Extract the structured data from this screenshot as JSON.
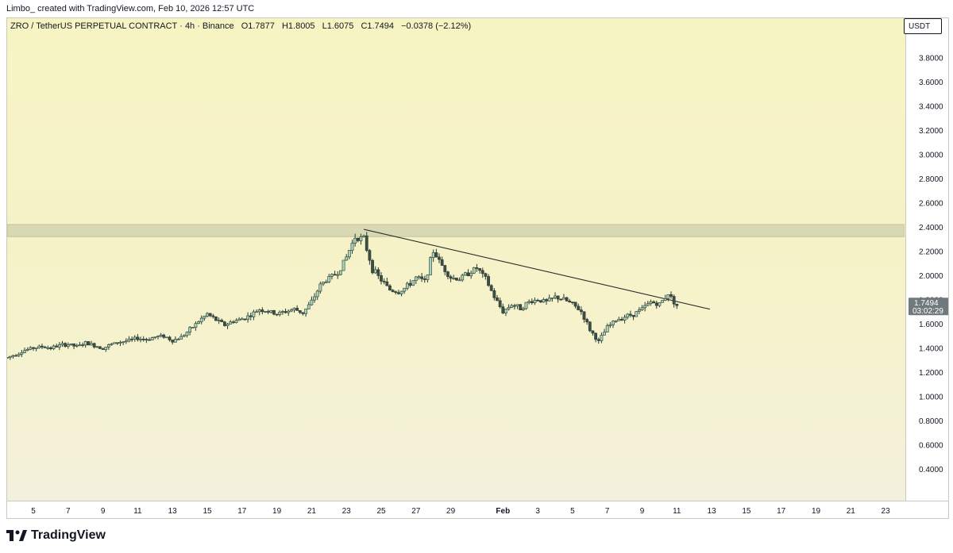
{
  "header": {
    "credit": "Limbo_ created with TradingView.com, Feb 10, 2026 12:57 UTC"
  },
  "legend": {
    "symbol": "ZRO / TetherUS PERPETUAL CONTRACT",
    "interval": "4h",
    "exchange": "Binance",
    "open": "O1.7877",
    "high": "H1.8005",
    "low": "L1.6075",
    "close": "C1.7494",
    "change": "−0.0378 (−2.12%)"
  },
  "currency_label": "USDT",
  "price_tag": {
    "price": "1.7494",
    "countdown": "03:02:29"
  },
  "brand": "TradingView",
  "colors": {
    "up": "#a8d5ba",
    "down": "#3d4f45",
    "wick": "#2b3a33",
    "zone": "#d9d8b4",
    "trendline": "#2c2c2c",
    "tag_bg": "#707a7c"
  },
  "chart_data": {
    "type": "candlestick",
    "title": "",
    "xlabel": "",
    "ylabel": "",
    "ylim": [
      0.3,
      4.0
    ],
    "y_ticks": [
      "3.8000",
      "3.6000",
      "3.4000",
      "3.2000",
      "3.0000",
      "2.8000",
      "2.6000",
      "2.4000",
      "2.2000",
      "2.0000",
      "1.8000",
      "1.6000",
      "1.4000",
      "1.2000",
      "1.0000",
      "0.8000",
      "0.6000",
      "0.4000"
    ],
    "x_ticks": [
      "5",
      "7",
      "9",
      "11",
      "13",
      "15",
      "17",
      "19",
      "21",
      "23",
      "25",
      "27",
      "29",
      "Feb",
      "3",
      "5",
      "7",
      "9",
      "11",
      "13",
      "15",
      "17",
      "19",
      "21",
      "23"
    ],
    "x_tick_days": [
      5,
      7,
      9,
      11,
      13,
      15,
      17,
      19,
      21,
      23,
      25,
      27,
      29,
      32,
      34,
      36,
      38,
      40,
      42,
      44,
      46,
      48,
      50,
      52,
      54
    ],
    "x_unit": "days since Jan 1, 2026",
    "grid": false,
    "series_description": "4h ZRO/USDT candles (approximate, read from chart)",
    "candles_daily_path": [
      [
        3.5,
        1.32
      ],
      [
        4,
        1.35
      ],
      [
        4.5,
        1.38
      ],
      [
        5,
        1.4
      ],
      [
        5.5,
        1.41
      ],
      [
        6,
        1.4
      ],
      [
        6.5,
        1.42
      ],
      [
        7,
        1.43
      ],
      [
        7.5,
        1.41
      ],
      [
        8,
        1.44
      ],
      [
        8.5,
        1.42
      ],
      [
        9,
        1.4
      ],
      [
        9.5,
        1.43
      ],
      [
        10,
        1.45
      ],
      [
        10.5,
        1.46
      ],
      [
        11,
        1.48
      ],
      [
        11.5,
        1.47
      ],
      [
        12,
        1.49
      ],
      [
        12.5,
        1.5
      ],
      [
        13,
        1.46
      ],
      [
        13.5,
        1.49
      ],
      [
        14,
        1.55
      ],
      [
        14.5,
        1.62
      ],
      [
        15,
        1.68
      ],
      [
        15.5,
        1.63
      ],
      [
        16,
        1.59
      ],
      [
        16.5,
        1.62
      ],
      [
        17,
        1.64
      ],
      [
        17.5,
        1.67
      ],
      [
        18,
        1.72
      ],
      [
        18.5,
        1.7
      ],
      [
        19,
        1.68
      ],
      [
        19.5,
        1.7
      ],
      [
        20,
        1.72
      ],
      [
        20.5,
        1.69
      ],
      [
        21,
        1.78
      ],
      [
        21.5,
        1.92
      ],
      [
        22,
        1.98
      ],
      [
        22.5,
        2.02
      ],
      [
        23,
        2.15
      ],
      [
        23.5,
        2.32
      ],
      [
        24,
        2.3
      ],
      [
        24.5,
        2.05
      ],
      [
        25,
        1.96
      ],
      [
        25.5,
        1.88
      ],
      [
        26,
        1.86
      ],
      [
        26.5,
        1.91
      ],
      [
        27,
        1.98
      ],
      [
        27.5,
        1.95
      ],
      [
        28,
        2.2
      ],
      [
        28.5,
        2.08
      ],
      [
        29,
        1.98
      ],
      [
        29.5,
        1.97
      ],
      [
        30,
        2.02
      ],
      [
        30.5,
        2.06
      ],
      [
        31,
        1.97
      ],
      [
        31.5,
        1.82
      ],
      [
        32,
        1.7
      ],
      [
        32.5,
        1.76
      ],
      [
        33,
        1.73
      ],
      [
        33.5,
        1.78
      ],
      [
        34,
        1.8
      ],
      [
        34.5,
        1.78
      ],
      [
        35,
        1.82
      ],
      [
        35.5,
        1.8
      ],
      [
        36,
        1.76
      ],
      [
        36.5,
        1.7
      ],
      [
        37,
        1.55
      ],
      [
        37.5,
        1.45
      ],
      [
        38,
        1.57
      ],
      [
        38.5,
        1.63
      ],
      [
        39,
        1.66
      ],
      [
        39.5,
        1.68
      ],
      [
        40,
        1.72
      ],
      [
        40.5,
        1.78
      ],
      [
        41,
        1.76
      ],
      [
        41.5,
        1.85
      ],
      [
        42,
        1.75
      ]
    ],
    "resistance_zone": [
      2.32,
      2.42
    ],
    "trendline": {
      "start": [
        24.0,
        2.38
      ],
      "end": [
        43.9,
        1.72
      ]
    },
    "last_price": 1.7494
  }
}
